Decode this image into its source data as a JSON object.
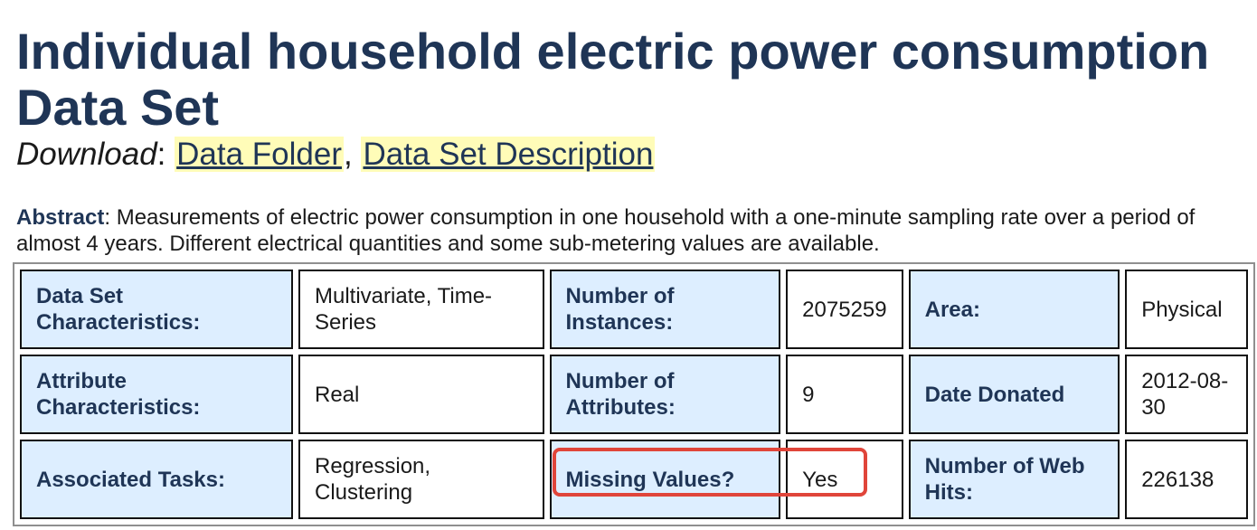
{
  "page": {
    "title": "Individual household electric power consumption Data Set"
  },
  "download": {
    "label": "Download",
    "separator": ":",
    "comma": ",",
    "links": [
      {
        "label": "Data Folder"
      },
      {
        "label": "Data Set Description"
      }
    ]
  },
  "abstract": {
    "label": "Abstract",
    "text": ": Measurements of electric power consumption in one household with a one-minute sampling rate over a period of almost 4 years. Different electrical quantities and some sub-metering values are available."
  },
  "table": {
    "rows": [
      [
        {
          "label": "Data Set Characteristics:",
          "value": "Multivariate, Time-Series"
        },
        {
          "label": "Number of Instances:",
          "value": "2075259"
        },
        {
          "label": "Area:",
          "value": "Physical"
        }
      ],
      [
        {
          "label": "Attribute Characteristics:",
          "value": "Real"
        },
        {
          "label": "Number of Attributes:",
          "value": "9"
        },
        {
          "label": "Date Donated",
          "value": "2012-08-30"
        }
      ],
      [
        {
          "label": "Associated Tasks:",
          "value": "Regression, Clustering"
        },
        {
          "label": "Missing Values?",
          "value": "Yes"
        },
        {
          "label": "Number of Web Hits:",
          "value": "226138"
        }
      ]
    ]
  },
  "annotation": {
    "highlight_color": "#e0453a",
    "target": "Missing Values? / Yes"
  },
  "colors": {
    "heading": "#1f3556",
    "label_cell_bg": "#ddeeff",
    "link_bg": "#fffcb8"
  }
}
